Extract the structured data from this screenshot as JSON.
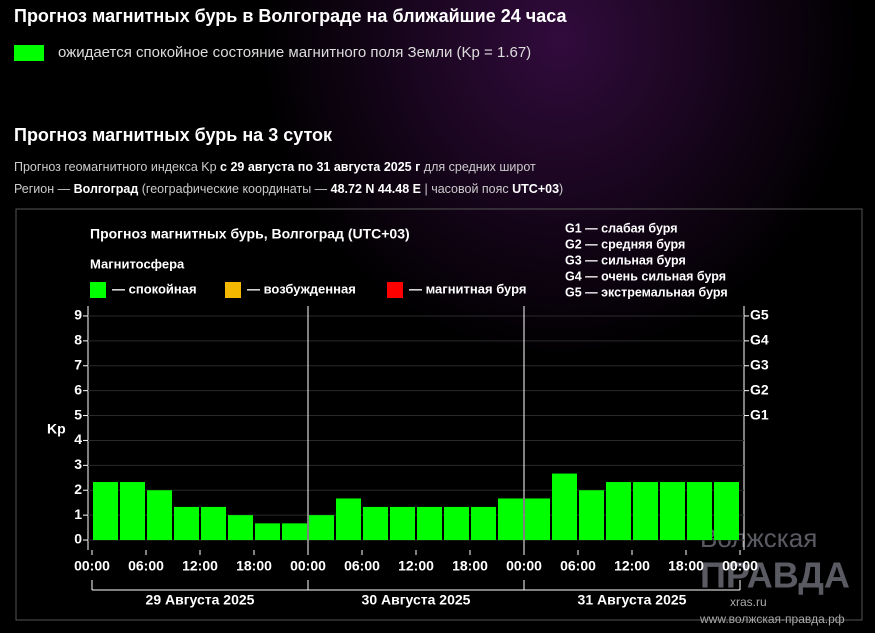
{
  "header": {
    "title": "Прогноз магнитных бурь в Волгограде на ближайшие 24 часа",
    "status_color": "#00ff00",
    "status_text": "ожидается спокойное состояние магнитного поля Земли (Kp = 1.67)"
  },
  "section": {
    "title": "Прогноз магнитных бурь на 3 суток",
    "description": [
      {
        "text": "Прогноз геомагнитного индекса Kp ",
        "bold": false
      },
      {
        "text": "с 29 августа по 31 августа 2025 г",
        "bold": true
      },
      {
        "text": " для средних широт",
        "bold": false
      }
    ],
    "region": [
      {
        "text": "Регион — ",
        "bold": false
      },
      {
        "text": "Волгоград",
        "bold": true
      },
      {
        "text": " (географические координаты — ",
        "bold": false
      },
      {
        "text": "48.72 N",
        "bold": true
      },
      {
        "text": " ",
        "bold": false
      },
      {
        "text": "44.48 E",
        "bold": true
      },
      {
        "text": " | часовой пояс ",
        "bold": false
      },
      {
        "text": "UTC+03",
        "bold": true
      },
      {
        "text": ")",
        "bold": false
      }
    ]
  },
  "chart_data": {
    "type": "bar",
    "title": "Прогноз магнитных бурь, Волгоград (UTC+03)",
    "legend_title": "Магнитосфера",
    "legend": [
      {
        "name": "— спокойная",
        "color": "#00ff00"
      },
      {
        "name": "— возбужденная",
        "color": "#f5b800"
      },
      {
        "name": "— магнитная буря",
        "color": "#ff0000"
      }
    ],
    "scale_legend": [
      "G1 — слабая буря",
      "G2 — средняя буря",
      "G3 — сильная буря",
      "G4 — очень сильная буря",
      "G5 — экстремальная буря"
    ],
    "ylabel": "Kp",
    "color": "#00ff00",
    "bar_width": 3,
    "x": [
      0,
      3,
      6,
      9,
      12,
      15,
      18,
      21,
      24,
      27,
      30,
      33,
      36,
      39,
      42,
      45,
      48,
      51,
      54,
      57,
      60,
      63,
      66,
      69
    ],
    "values": [
      2.33,
      2.33,
      2,
      1.33,
      1.33,
      1,
      0.67,
      0.67,
      1,
      1.67,
      1.33,
      1.33,
      1.33,
      1.33,
      1.33,
      1.67,
      1.67,
      2.67,
      2,
      2.33,
      2.33,
      2.33,
      2.33,
      2.33
    ],
    "xlim": [
      0,
      72
    ],
    "xticks": [
      {
        "value": 0,
        "label": "00:00"
      },
      {
        "value": 6,
        "label": "06:00"
      },
      {
        "value": 12,
        "label": "12:00"
      },
      {
        "value": 18,
        "label": "18:00"
      },
      {
        "value": 24,
        "label": "00:00"
      },
      {
        "value": 30,
        "label": "06:00"
      },
      {
        "value": 36,
        "label": "12:00"
      },
      {
        "value": 42,
        "label": "18:00"
      },
      {
        "value": 48,
        "label": "00:00"
      },
      {
        "value": 54,
        "label": "06:00"
      },
      {
        "value": 60,
        "label": "12:00"
      },
      {
        "value": 66,
        "label": "18:00"
      },
      {
        "value": 72,
        "label": "00:00"
      }
    ],
    "day_labels": [
      "29 Августа 2025",
      "30 Августа 2025",
      "31 Августа 2025"
    ],
    "ylim": [
      -0.4,
      9.4
    ],
    "yticks": [
      0,
      1,
      2,
      3,
      4,
      5,
      6,
      7,
      8,
      9
    ],
    "y2lim": [
      -0.4,
      9.4
    ],
    "y2ticks": [
      {
        "value": 5,
        "label": "G1"
      },
      {
        "value": 6,
        "label": "G2"
      },
      {
        "value": 7,
        "label": "G3"
      },
      {
        "value": 8,
        "label": "G4"
      },
      {
        "value": 9,
        "label": "G5"
      }
    ],
    "grid": true
  },
  "watermark": {
    "name_top": "Волжская",
    "name_bottom": "ПРАВДА",
    "source": "xras.ru",
    "url": "www.волжская-правда.рф"
  }
}
